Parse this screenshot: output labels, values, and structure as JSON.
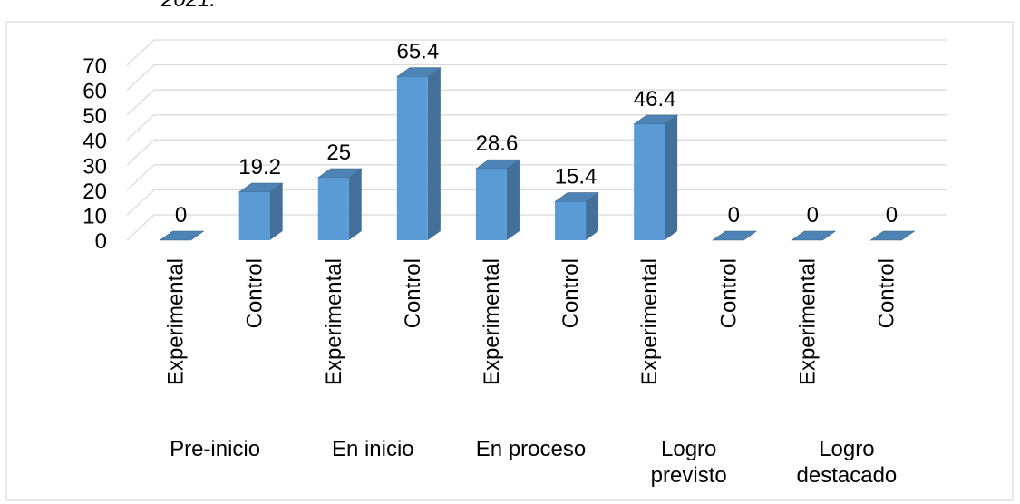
{
  "page": {
    "cut_off_title_fragment": "2021."
  },
  "chart_data": {
    "type": "bar",
    "bar_style": "3d-column",
    "color": "#5B9BD5",
    "title": "",
    "xlabel": "",
    "ylabel": "",
    "ylim": [
      0,
      70
    ],
    "yticks": [
      0,
      10,
      20,
      30,
      40,
      50,
      60,
      70
    ],
    "grid": true,
    "legend": "none",
    "groups": [
      "Pre-inicio",
      "En inicio",
      "En proceso",
      "Logro previsto",
      "Logro destacado"
    ],
    "categories": [
      "Experimental",
      "Control",
      "Experimental",
      "Control",
      "Experimental",
      "Control",
      "Experimental",
      "Control",
      "Experimental",
      "Control"
    ],
    "values": [
      0,
      19.2,
      25,
      65.4,
      28.6,
      15.4,
      46.4,
      0,
      0,
      0
    ],
    "data_labels": [
      "0",
      "19.2",
      "25",
      "65.4",
      "28.6",
      "15.4",
      "46.4",
      "0",
      "0",
      "0"
    ]
  }
}
